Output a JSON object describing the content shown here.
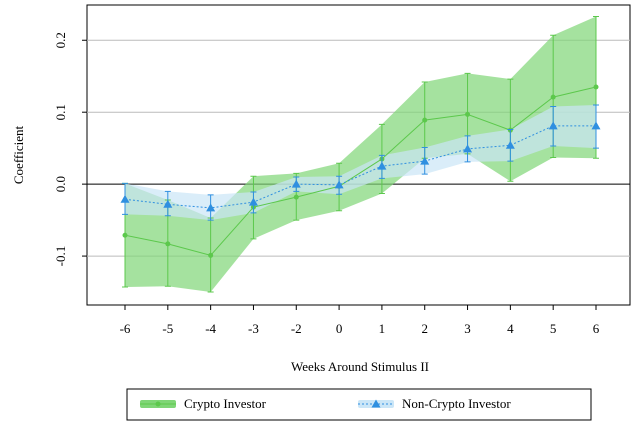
{
  "chart_data": {
    "type": "line",
    "xlabel": "Weeks Around Stimulus II",
    "ylabel": "Coefficient",
    "categories": [
      "-6",
      "-5",
      "-4",
      "-3",
      "-2",
      "0",
      "1",
      "2",
      "3",
      "4",
      "5",
      "6"
    ],
    "ylim": [
      -0.168,
      0.249
    ],
    "yticks": [
      -0.1,
      {
        "value": 0,
        "label": "0.0"
      },
      0.1,
      0.2
    ],
    "grid": true,
    "legend": "bottom",
    "series": [
      {
        "name": "Crypto Investor",
        "color": "#5cc84c",
        "values": [
          -0.071,
          -0.083,
          -0.099,
          -0.032,
          -0.018,
          -0.003,
          0.035,
          0.089,
          0.097,
          0.075,
          0.121,
          0.135
        ],
        "lower": [
          -0.143,
          -0.142,
          -0.15,
          -0.076,
          -0.05,
          -0.037,
          -0.013,
          0.036,
          0.042,
          0.004,
          0.037,
          0.036
        ],
        "upper": [
          0.001,
          -0.022,
          -0.047,
          0.011,
          0.015,
          0.029,
          0.083,
          0.142,
          0.154,
          0.146,
          0.207,
          0.233
        ]
      },
      {
        "name": "Non-Crypto Investor",
        "color": "#2f8fe0",
        "values": [
          -0.021,
          -0.028,
          -0.033,
          -0.025,
          0.0,
          -0.001,
          0.025,
          0.032,
          0.049,
          0.054,
          0.081,
          0.081
        ],
        "lower": [
          -0.042,
          -0.044,
          -0.05,
          -0.04,
          -0.01,
          -0.014,
          0.008,
          0.014,
          0.031,
          0.032,
          0.053,
          0.05
        ],
        "upper": [
          0.001,
          -0.01,
          -0.015,
          -0.011,
          0.01,
          0.011,
          0.04,
          0.051,
          0.067,
          0.076,
          0.108,
          0.11
        ]
      }
    ]
  }
}
